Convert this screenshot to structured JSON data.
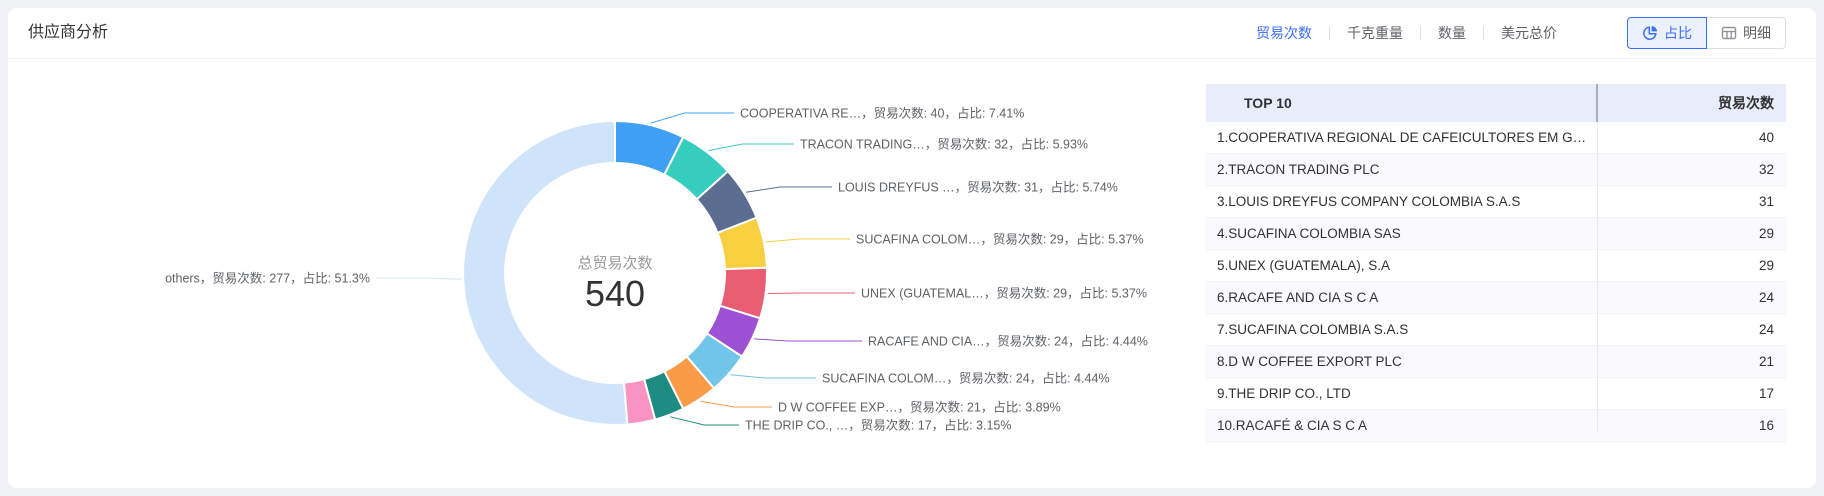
{
  "page": {
    "title": "供应商分析"
  },
  "toolbar": {
    "accent_color": "#3D6EF2",
    "metric_tabs": [
      {
        "label": "贸易次数",
        "active": true
      },
      {
        "label": "千克重量",
        "active": false
      },
      {
        "label": "数量",
        "active": false
      },
      {
        "label": "美元总价",
        "active": false
      }
    ],
    "view_toggles": [
      {
        "label": "占比",
        "icon": "pie-chart-icon",
        "active": true
      },
      {
        "label": "明细",
        "icon": "table-icon",
        "active": false
      }
    ]
  },
  "chart_data": {
    "type": "pie",
    "subtype": "donut",
    "center": {
      "label": "总贸易次数",
      "value": "540"
    },
    "metric_label": "贸易次数",
    "pct_label": "占比",
    "total": 540,
    "slices": [
      {
        "name": "COOPERATIVA RE…",
        "value": 40,
        "pct": "7.41%",
        "color": "#3FA0F4",
        "label_shown": true
      },
      {
        "name": "TRACON TRADING…",
        "value": 32,
        "pct": "5.93%",
        "color": "#36CDBE",
        "label_shown": true
      },
      {
        "name": "LOUIS DREYFUS …",
        "value": 31,
        "pct": "5.74%",
        "color": "#5B6D90",
        "label_shown": true
      },
      {
        "name": "SUCAFINA COLOM…",
        "value": 29,
        "pct": "5.37%",
        "color": "#F7CF3F",
        "label_shown": true
      },
      {
        "name": "UNEX (GUATEMAL…",
        "value": 29,
        "pct": "5.37%",
        "color": "#E95D72",
        "label_shown": true
      },
      {
        "name": "RACAFE AND CIA…",
        "value": 24,
        "pct": "4.44%",
        "color": "#9C52D3",
        "label_shown": true
      },
      {
        "name": "SUCAFINA COLOM…",
        "value": 24,
        "pct": "4.44%",
        "color": "#70C5E9",
        "label_shown": true
      },
      {
        "name": "D W COFFEE EXP…",
        "value": 21,
        "pct": "3.89%",
        "color": "#FA9C47",
        "label_shown": true
      },
      {
        "name": "THE DRIP CO., …",
        "value": 17,
        "pct": "3.15%",
        "color": "#1F8C83",
        "label_shown": true
      },
      {
        "name": "",
        "value": 16,
        "pct": "",
        "color": "#F893C3",
        "label_shown": false
      },
      {
        "name": "others",
        "value": 277,
        "pct": "51.3%",
        "color": "#CFE4FB",
        "label_shown": true
      }
    ]
  },
  "table": {
    "headers": [
      "TOP 10",
      "贸易次数"
    ],
    "rows": [
      {
        "name": "1.COOPERATIVA REGIONAL DE CAFEICULTORES EM G…",
        "value": 40
      },
      {
        "name": "2.TRACON TRADING PLC",
        "value": 32
      },
      {
        "name": "3.LOUIS DREYFUS COMPANY COLOMBIA S.A.S",
        "value": 31
      },
      {
        "name": "4.SUCAFINA COLOMBIA SAS",
        "value": 29
      },
      {
        "name": "5.UNEX (GUATEMALA), S.A",
        "value": 29
      },
      {
        "name": "6.RACAFE AND CIA S C A",
        "value": 24
      },
      {
        "name": "7.SUCAFINA COLOMBIA S.A.S",
        "value": 24
      },
      {
        "name": "8.D W COFFEE EXPORT PLC",
        "value": 21
      },
      {
        "name": "9.THE DRIP CO., LTD",
        "value": 17
      },
      {
        "name": "10.RACAFÉ & CIA S C A",
        "value": 16
      }
    ]
  }
}
